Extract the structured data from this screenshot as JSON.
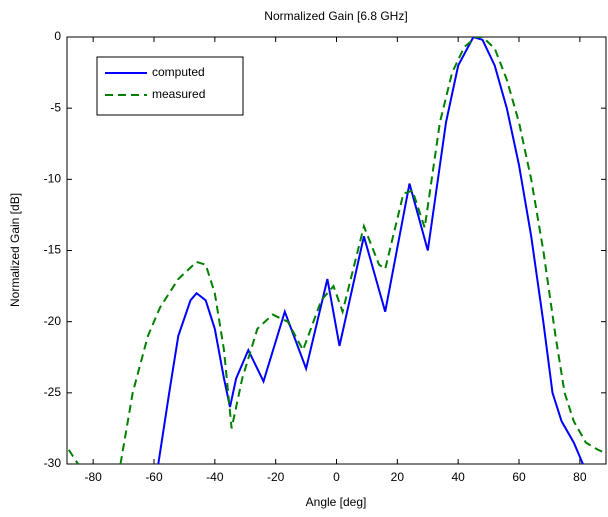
{
  "chart_data": {
    "type": "line",
    "title": "Normalized Gain [6.8 GHz]",
    "x_label": "Angle [deg]",
    "y_label": "Normalized Gain [dB]",
    "xlim": [
      -88.6,
      88.6
    ],
    "ylim": [
      -30,
      0
    ],
    "xticks": [
      -80,
      -60,
      -40,
      -20,
      0,
      20,
      40,
      60,
      80
    ],
    "yticks": [
      0,
      -5,
      -10,
      -15,
      -20,
      -25,
      -30
    ],
    "grid": false,
    "legend_position": "upper-left",
    "series": [
      {
        "name": "computed",
        "color": "#0000ff",
        "style": "solid",
        "x": [
          -58.6,
          -55,
          -52,
          -48,
          -46,
          -43,
          -40,
          -37,
          -35,
          -33,
          -29,
          -24,
          -17,
          -10,
          -3,
          1,
          9,
          16,
          24,
          30,
          36,
          40,
          45,
          48,
          52,
          56,
          60,
          64,
          68,
          71,
          74,
          78,
          81
        ],
        "values": [
          -30,
          -25,
          -21,
          -18.5,
          -18,
          -18.5,
          -20.5,
          -24,
          -26,
          -24,
          -22,
          -24.2,
          -19.3,
          -23.3,
          -17,
          -21.7,
          -14,
          -19.3,
          -10.3,
          -15,
          -6,
          -2,
          0,
          -0.2,
          -2,
          -5,
          -9,
          -14,
          -20,
          -25,
          -27,
          -28.5,
          -30
        ]
      },
      {
        "name": "measured",
        "color": "#008000",
        "style": "dashed",
        "x": [
          -88,
          -85,
          -78,
          -71,
          -67,
          -62,
          -58,
          -52,
          -46,
          -43,
          -40,
          -37,
          -34.5,
          -31,
          -26,
          -21,
          -16,
          -11,
          -5,
          -1,
          2,
          9,
          14,
          16,
          22,
          25,
          29,
          34,
          38,
          42,
          46,
          48,
          52,
          56,
          60,
          64,
          68,
          72,
          75,
          78,
          82,
          86,
          88
        ],
        "values": [
          -29,
          -30,
          null,
          -30,
          -25,
          -21,
          -19,
          -17,
          -15.8,
          -16,
          -18,
          -22,
          -27.5,
          -24,
          -20.5,
          -19.5,
          -20,
          -22,
          -18.5,
          -17.5,
          -19.3,
          -13.3,
          -16,
          -16.3,
          -11,
          -10.8,
          -13.4,
          -6,
          -2.5,
          -0.7,
          0,
          0,
          -0.8,
          -3,
          -6,
          -10,
          -15,
          -21,
          -25,
          -27,
          -28.5,
          -29,
          -29.2
        ]
      }
    ]
  }
}
